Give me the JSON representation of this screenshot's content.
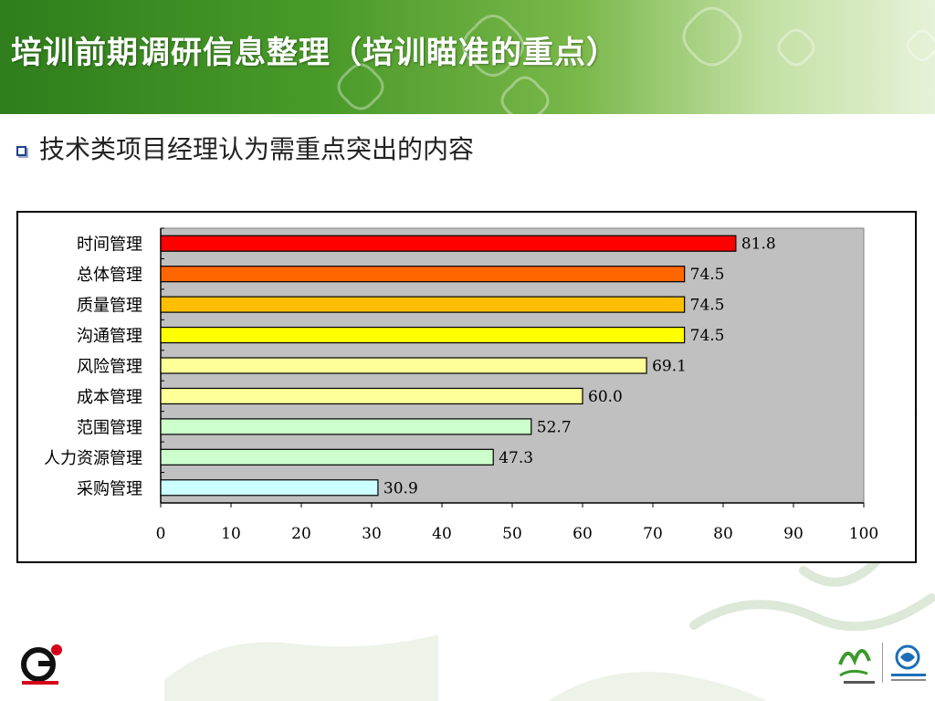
{
  "title": "培训前期调研信息整理（培训瞄准的重点）",
  "subtitle": "技术类项目经理认为需重点突出的内容",
  "icons": {
    "bullet": "square-bullet-icon",
    "logo_left": "g3-logo-icon",
    "logo_expo": "expo-2010-logo-icon",
    "logo_mobile": "china-mobile-logo-icon"
  },
  "colors": {
    "header_dark": "#2f7d1c",
    "plot_bg": "#c0c0c0"
  },
  "chart_data": {
    "type": "bar",
    "orientation": "horizontal",
    "title": "",
    "xlabel": "",
    "ylabel": "",
    "categories": [
      "时间管理",
      "总体管理",
      "质量管理",
      "沟通管理",
      "风险管理",
      "成本管理",
      "范围管理",
      "人力资源管理",
      "采购管理"
    ],
    "values": [
      81.8,
      74.5,
      74.5,
      74.5,
      69.1,
      60.0,
      52.7,
      47.3,
      30.9
    ],
    "value_labels": [
      "81.8",
      "74.5",
      "74.5",
      "74.5",
      "69.1",
      "60.0",
      "52.7",
      "47.3",
      "30.9"
    ],
    "bar_colors": [
      "#ff0000",
      "#ff6600",
      "#ffbf00",
      "#ffff00",
      "#ffff99",
      "#ffff99",
      "#ccffcc",
      "#ccffcc",
      "#ccffff"
    ],
    "xlim": [
      0,
      100
    ],
    "xticks": [
      "0",
      "10",
      "20",
      "30",
      "40",
      "50",
      "60",
      "70",
      "80",
      "90",
      "100"
    ],
    "grid": false,
    "legend": "none"
  }
}
